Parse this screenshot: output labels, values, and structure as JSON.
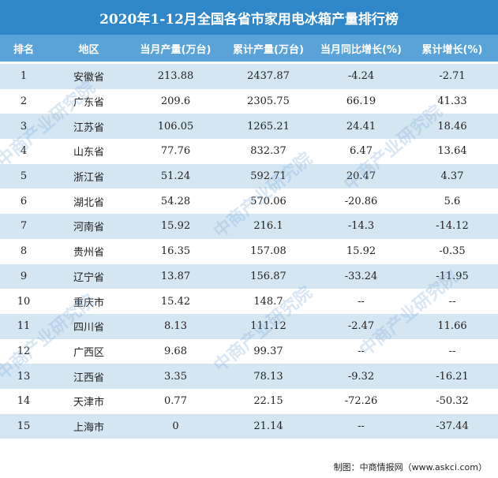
{
  "title": "2020年1-12月全国各省市家用电冰箱产量排行榜",
  "headers": [
    "排名",
    "地区",
    "当月产量(万台)",
    "累计产量(万台)",
    "当月同比增长(%)",
    "累计增长(%)"
  ],
  "rows": [
    [
      "1",
      "安徽省",
      "213.88",
      "2437.87",
      "-4.24",
      "-2.71"
    ],
    [
      "2",
      "广东省",
      "209.6",
      "2305.75",
      "66.19",
      "41.33"
    ],
    [
      "3",
      "江苏省",
      "106.05",
      "1265.21",
      "24.41",
      "18.46"
    ],
    [
      "4",
      "山东省",
      "77.76",
      "832.37",
      "6.47",
      "13.64"
    ],
    [
      "5",
      "浙江省",
      "51.24",
      "592.71",
      "20.47",
      "4.37"
    ],
    [
      "6",
      "湖北省",
      "54.28",
      "570.06",
      "-20.86",
      "5.6"
    ],
    [
      "7",
      "河南省",
      "15.92",
      "216.1",
      "-14.3",
      "-14.12"
    ],
    [
      "8",
      "贵州省",
      "16.35",
      "157.08",
      "15.92",
      "-0.35"
    ],
    [
      "9",
      "辽宁省",
      "13.87",
      "156.87",
      "-33.24",
      "-11.95"
    ],
    [
      "10",
      "重庆市",
      "15.42",
      "148.7",
      "--",
      "--"
    ],
    [
      "11",
      "四川省",
      "8.13",
      "111.12",
      "-2.47",
      "11.66"
    ],
    [
      "12",
      "广西区",
      "9.68",
      "99.37",
      "--",
      "--"
    ],
    [
      "13",
      "江西省",
      "3.35",
      "78.13",
      "-9.32",
      "-16.21"
    ],
    [
      "14",
      "天津市",
      "0.77",
      "22.15",
      "-72.26",
      "-50.32"
    ],
    [
      "15",
      "上海市",
      "0",
      "21.14",
      "--",
      "-37.44"
    ]
  ],
  "footer": "制图：中商情报网（www.askci.com）",
  "watermark": "中商产业研究院"
}
